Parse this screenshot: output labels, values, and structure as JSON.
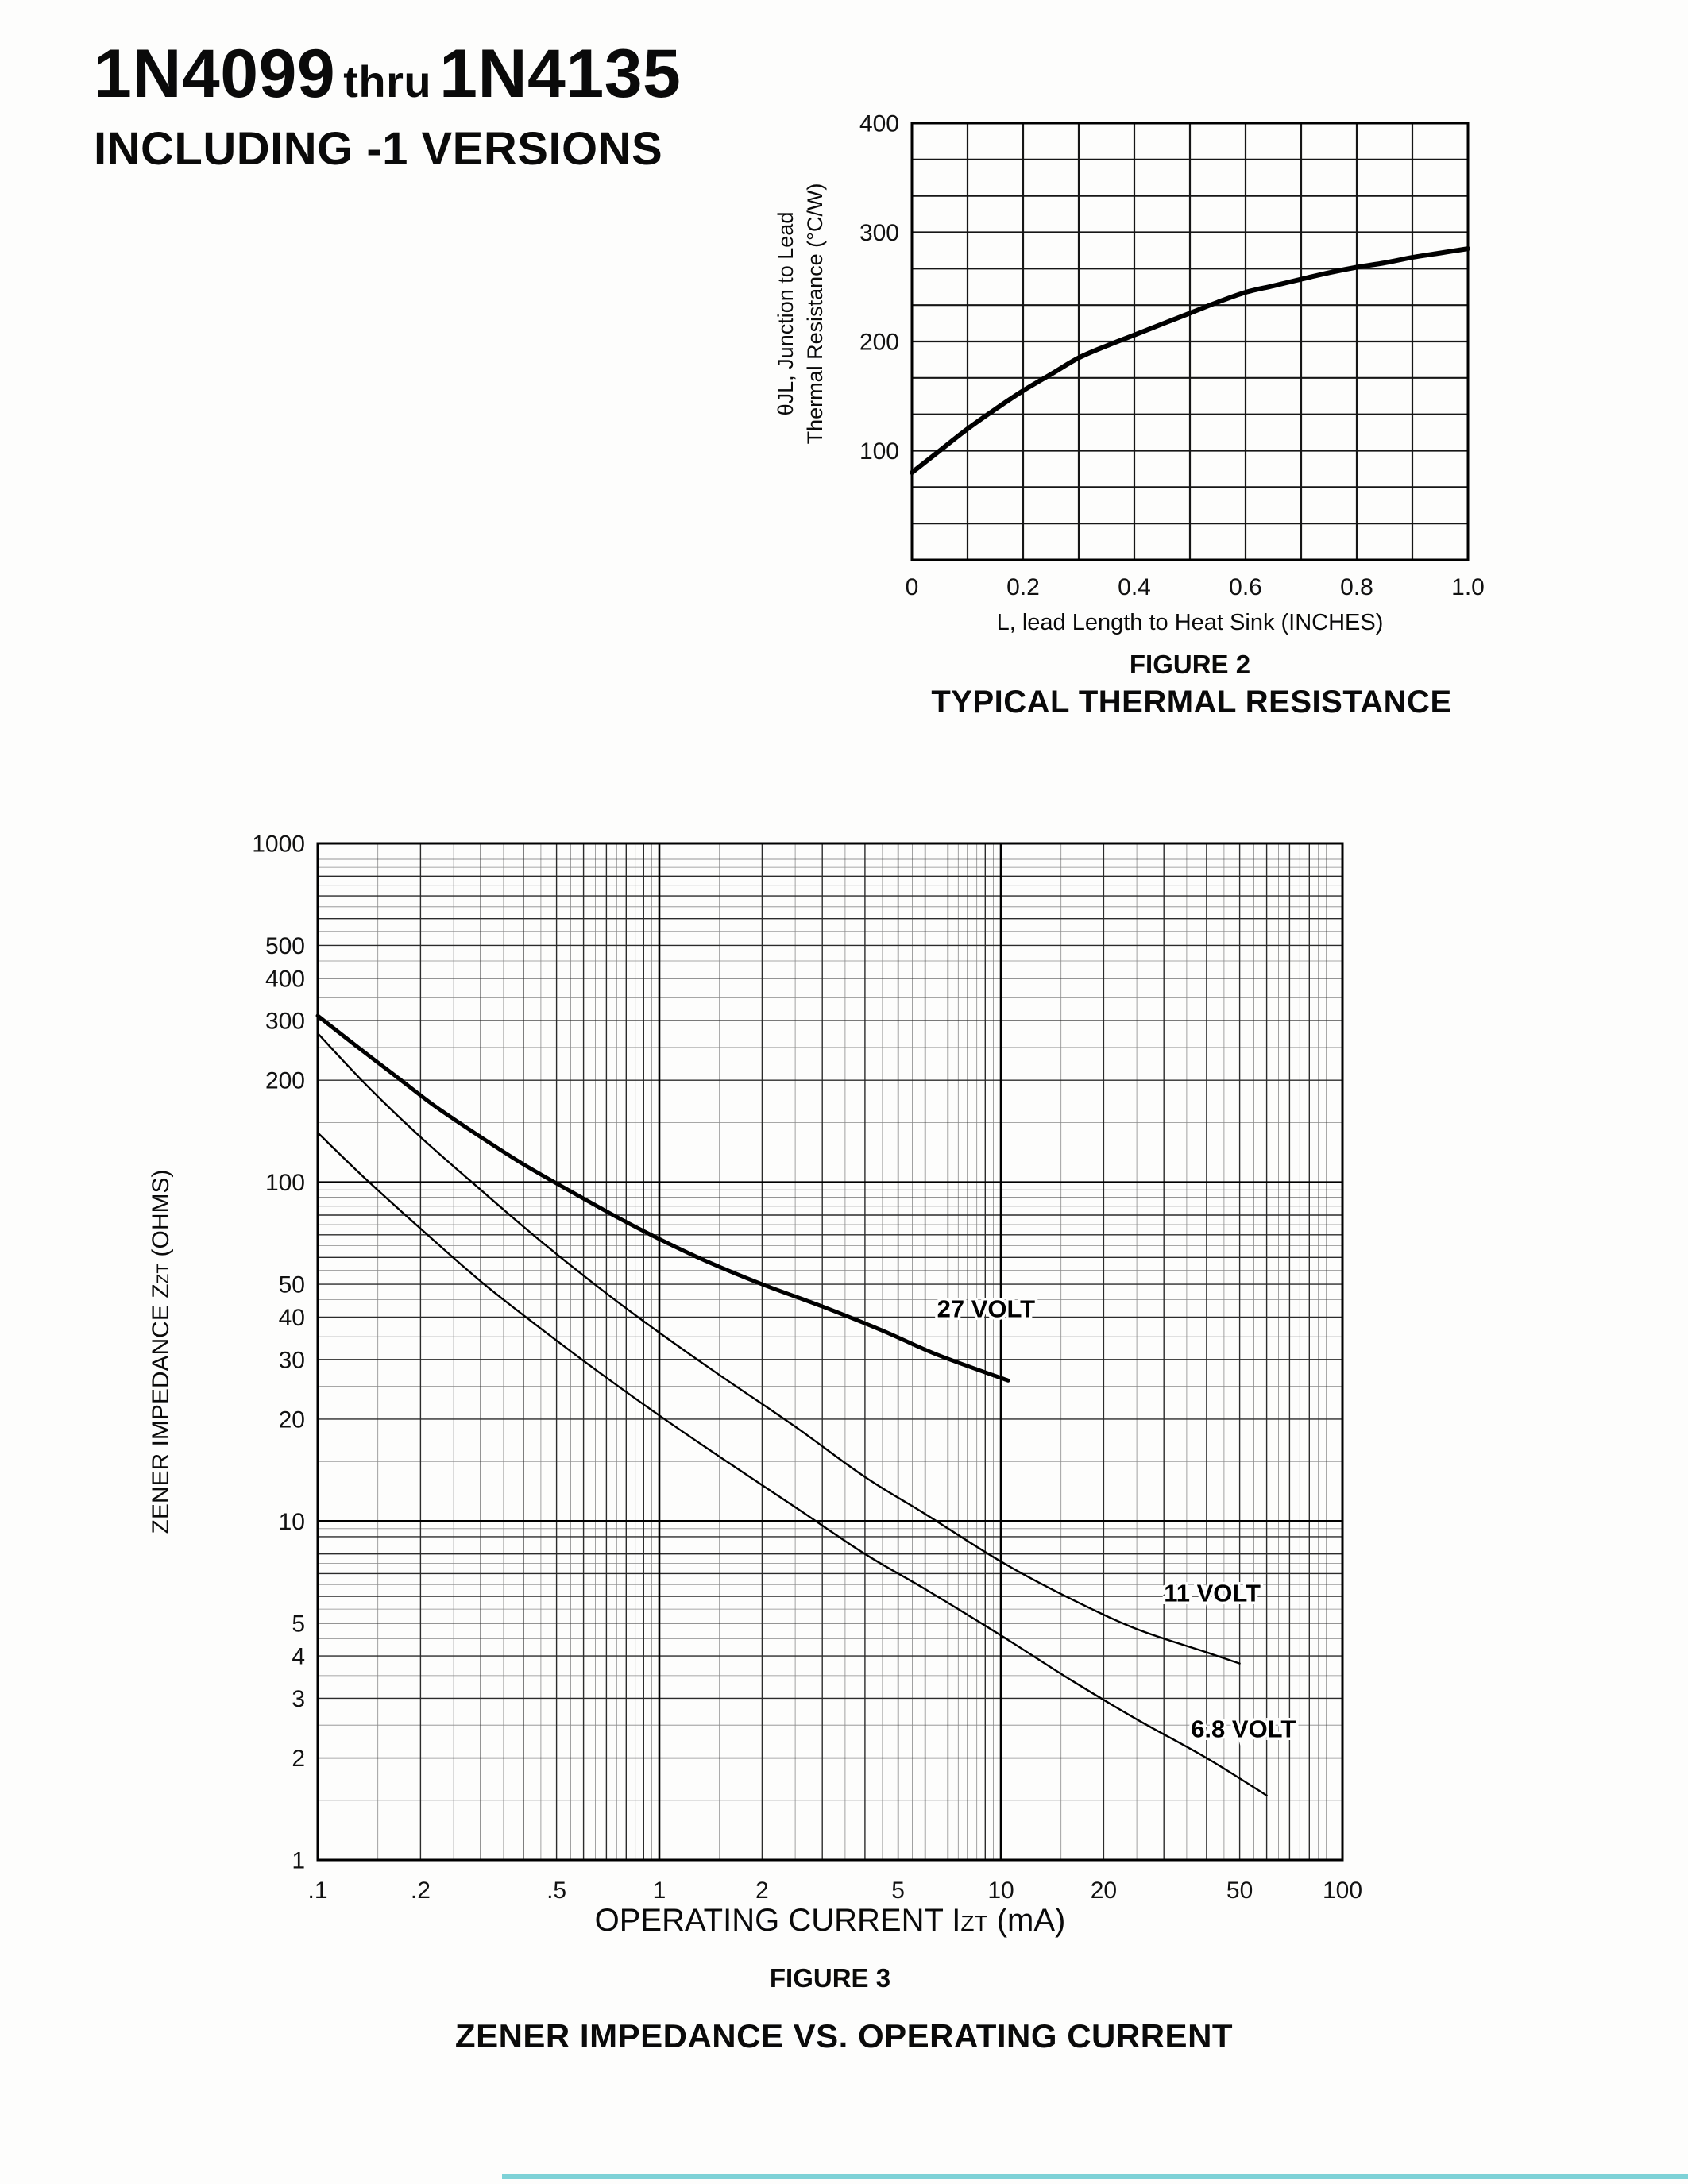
{
  "page": {
    "title_part1": "1N4099",
    "title_thru": "thru",
    "title_part2": "1N4135",
    "subtitle": "INCLUDING -1 VERSIONS"
  },
  "figure2": {
    "caption": "FIGURE 2",
    "title": "TYPICAL THERMAL RESISTANCE",
    "xlabel": "L, lead Length to Heat Sink (INCHES)",
    "ylabel_line1": "θJL, Junction to Lead",
    "ylabel_line2": "Thermal Resistance (°C/W)"
  },
  "figure3": {
    "caption": "FIGURE 3",
    "title": "ZENER IMPEDANCE VS. OPERATING CURRENT",
    "xlabel_pre": "OPERATING CURRENT I",
    "xlabel_sub": "ZT",
    "xlabel_post": " (mA)",
    "ylabel_pre": "ZENER IMPEDANCE Z",
    "ylabel_sub": "ZT",
    "ylabel_post": " (OHMS)"
  },
  "chart_data": [
    {
      "id": "thermal",
      "type": "line",
      "title": "TYPICAL THERMAL RESISTANCE",
      "xlabel": "L, lead Length to Heat Sink (INCHES)",
      "ylabel": "θJL, Junction to Lead Thermal Resistance (°C/W)",
      "xlim": [
        0,
        1.0
      ],
      "ylim": [
        0,
        400
      ],
      "grid": true,
      "x_minor_step": 0.1,
      "y_divisions": 12,
      "x_ticks": [
        0,
        0.2,
        0.4,
        0.6,
        0.8,
        1.0
      ],
      "x_tick_labels": [
        "0",
        "0.2",
        "0.4",
        "0.6",
        "0.8",
        "1.0"
      ],
      "y_ticks": [
        100,
        200,
        300,
        400
      ],
      "y_tick_labels": [
        "100",
        "200",
        "300",
        "400"
      ],
      "series": [
        {
          "name": "thermal resistance",
          "x": [
            0,
            0.05,
            0.1,
            0.15,
            0.2,
            0.25,
            0.3,
            0.35,
            0.4,
            0.45,
            0.5,
            0.55,
            0.6,
            0.65,
            0.7,
            0.75,
            0.8,
            0.85,
            0.9,
            0.95,
            1.0
          ],
          "y": [
            80,
            100,
            120,
            138,
            155,
            170,
            185,
            196,
            206,
            216,
            226,
            236,
            245,
            251,
            257,
            263,
            268,
            272,
            277,
            281,
            285
          ]
        }
      ]
    },
    {
      "id": "zener",
      "type": "line",
      "scale": "log-log",
      "title": "ZENER IMPEDANCE VS. OPERATING CURRENT",
      "xlabel": "OPERATING CURRENT IZT (mA)",
      "ylabel": "ZENER IMPEDANCE ZZT (OHMS)",
      "xlim": [
        0.1,
        100
      ],
      "ylim": [
        1,
        1000
      ],
      "grid": true,
      "x_ticks": [
        0.1,
        0.2,
        0.5,
        1,
        2,
        5,
        10,
        20,
        50,
        100
      ],
      "x_tick_labels": [
        ".1",
        ".2",
        ".5",
        "1",
        "2",
        "5",
        "10",
        "20",
        "50",
        "100"
      ],
      "y_ticks": [
        1000,
        500,
        400,
        300,
        200,
        100,
        50,
        40,
        30,
        20,
        10,
        5,
        4,
        3,
        2,
        1
      ],
      "y_tick_labels": [
        "1000",
        "500",
        "400",
        "300",
        "200",
        "100",
        "50",
        "40",
        "30",
        "20",
        "10",
        "5",
        "4",
        "3",
        "2",
        "1"
      ],
      "series": [
        {
          "name": "27 VOLT",
          "x": [
            0.1,
            0.13,
            0.17,
            0.22,
            0.3,
            0.4,
            0.55,
            0.75,
            1.0,
            1.4,
            2.0,
            3.0,
            4.5,
            6.5,
            10.5
          ],
          "y": [
            310,
            252,
            205,
            168,
            136,
            113,
            94,
            79,
            68,
            58,
            50,
            43,
            36.5,
            31,
            26
          ]
        },
        {
          "name": "11 VOLT",
          "x": [
            0.1,
            0.14,
            0.2,
            0.3,
            0.45,
            0.7,
            1.0,
            1.5,
            2.5,
            4.0,
            6.0,
            10,
            16,
            25,
            40,
            50
          ],
          "y": [
            275,
            192,
            136,
            95,
            67,
            47,
            36,
            27,
            19,
            13.5,
            10.5,
            7.6,
            5.9,
            4.8,
            4.1,
            3.8
          ]
        },
        {
          "name": "6.8 VOLT",
          "x": [
            0.1,
            0.14,
            0.2,
            0.3,
            0.45,
            0.7,
            1.0,
            1.5,
            2.5,
            4.0,
            6.0,
            10,
            16,
            25,
            40,
            60
          ],
          "y": [
            140,
            101,
            73,
            51,
            37,
            26.5,
            20.5,
            15.5,
            11,
            8,
            6.3,
            4.6,
            3.4,
            2.6,
            2.0,
            1.55
          ]
        }
      ],
      "annotations": [
        {
          "text": "27 VOLT",
          "x": 6.5,
          "y": 40
        },
        {
          "text": "11 VOLT",
          "x": 30,
          "y": 5.8
        },
        {
          "text": "6.8 VOLT",
          "x": 36,
          "y": 2.3
        }
      ]
    }
  ]
}
